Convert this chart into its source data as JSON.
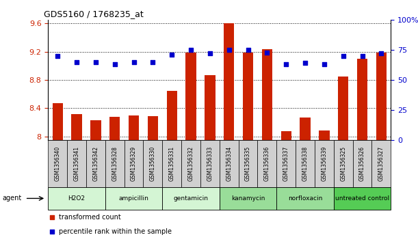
{
  "title": "GDS5160 / 1768235_at",
  "samples": [
    "GSM1356340",
    "GSM1356341",
    "GSM1356342",
    "GSM1356328",
    "GSM1356329",
    "GSM1356330",
    "GSM1356331",
    "GSM1356332",
    "GSM1356333",
    "GSM1356334",
    "GSM1356335",
    "GSM1356336",
    "GSM1356337",
    "GSM1356338",
    "GSM1356339",
    "GSM1356325",
    "GSM1356326",
    "GSM1356327"
  ],
  "transformed_count": [
    8.47,
    8.32,
    8.23,
    8.28,
    8.3,
    8.29,
    8.65,
    9.19,
    8.87,
    9.6,
    9.19,
    9.24,
    8.08,
    8.27,
    8.09,
    8.85,
    9.1,
    9.19
  ],
  "percentile_rank": [
    70,
    65,
    65,
    63,
    65,
    65,
    71,
    75,
    72,
    75,
    75,
    73,
    63,
    64,
    63,
    70,
    70,
    72
  ],
  "agents": [
    {
      "label": "H2O2",
      "start": 0,
      "end": 3,
      "color": "#d4f5d4"
    },
    {
      "label": "ampicillin",
      "start": 3,
      "end": 6,
      "color": "#d4f5d4"
    },
    {
      "label": "gentamicin",
      "start": 6,
      "end": 9,
      "color": "#d4f5d4"
    },
    {
      "label": "kanamycin",
      "start": 9,
      "end": 12,
      "color": "#99dd99"
    },
    {
      "label": "norfloxacin",
      "start": 12,
      "end": 15,
      "color": "#99dd99"
    },
    {
      "label": "untreated control",
      "start": 15,
      "end": 18,
      "color": "#55cc55"
    }
  ],
  "ylim_left": [
    7.95,
    9.65
  ],
  "ylim_right": [
    0,
    100
  ],
  "yticks_left": [
    8.0,
    8.4,
    8.8,
    9.2,
    9.6
  ],
  "yticks_left_labels": [
    "8",
    "8.4",
    "8.8",
    "9.2",
    "9.6"
  ],
  "yticks_right": [
    0,
    25,
    50,
    75,
    100
  ],
  "yticks_right_labels": [
    "0",
    "25",
    "50",
    "75",
    "100%"
  ],
  "bar_color": "#cc2200",
  "dot_color": "#0000cc",
  "bg_color": "#ffffff",
  "sample_box_color": "#d0d0d0",
  "legend_dot_label": "percentile rank within the sample",
  "legend_bar_label": "transformed count"
}
